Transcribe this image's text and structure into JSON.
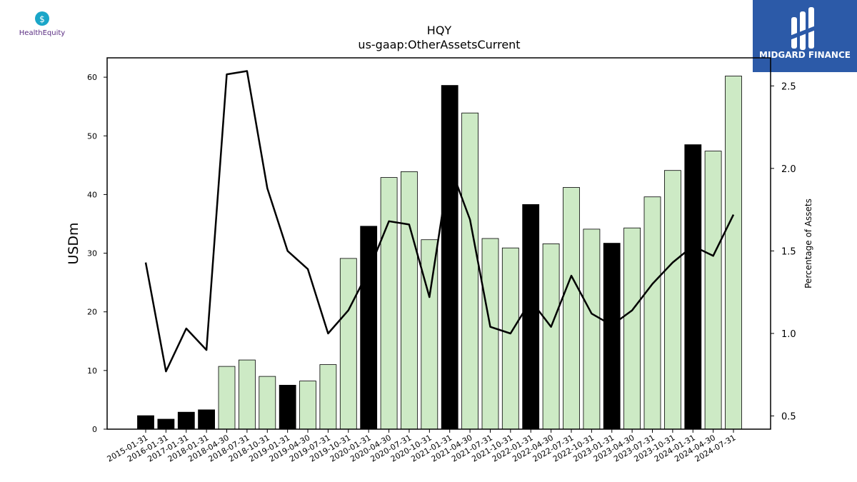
{
  "logos": {
    "left_text": "HealthEquity",
    "right_text": "MIDGARD FINANCE"
  },
  "colors": {
    "bar_black": "#000000",
    "bar_green": "#cdeac5",
    "line": "#000000",
    "logo_right_bg": "#2c5aa8",
    "logo_left_accent": "#1aa6c8",
    "logo_left_text": "#5a2d82"
  },
  "chart_data": {
    "type": "bar",
    "title": "HQY",
    "subtitle": "us-gaap:OtherAssetsCurrent",
    "ylabel": "USDm",
    "ylabel_right": "Percentage of Assets",
    "ylim": [
      0,
      63.3
    ],
    "ylim_right": [
      0.42,
      2.67
    ],
    "yticks": [
      0,
      10,
      20,
      30,
      40,
      50,
      60
    ],
    "yticks_right": [
      0.5,
      1.0,
      1.5,
      2.0,
      2.5
    ],
    "grid": false,
    "categories": [
      "2015-01-31",
      "2016-01-31",
      "2017-01-31",
      "2018-01-31",
      "2018-04-30",
      "2018-07-31",
      "2018-10-31",
      "2019-01-31",
      "2019-04-30",
      "2019-07-31",
      "2019-10-31",
      "2020-01-31",
      "2020-04-30",
      "2020-07-31",
      "2020-10-31",
      "2021-01-31",
      "2021-04-30",
      "2021-07-31",
      "2021-10-31",
      "2022-01-31",
      "2022-04-30",
      "2022-07-31",
      "2022-10-31",
      "2023-01-31",
      "2023-04-30",
      "2023-07-31",
      "2023-10-31",
      "2024-01-31",
      "2024-04-30",
      "2024-07-31"
    ],
    "series": [
      {
        "kind": "bar",
        "values": [
          2.3,
          1.7,
          2.9,
          3.3,
          10.7,
          11.8,
          9.0,
          7.5,
          8.2,
          11.0,
          29.1,
          34.6,
          42.9,
          43.9,
          32.3,
          58.6,
          53.9,
          32.5,
          30.9,
          38.3,
          31.6,
          41.2,
          34.1,
          31.7,
          34.3,
          39.6,
          44.1,
          48.5,
          47.4,
          60.2
        ],
        "annual": [
          true,
          true,
          true,
          true,
          false,
          false,
          false,
          true,
          false,
          false,
          false,
          true,
          false,
          false,
          false,
          true,
          false,
          false,
          false,
          true,
          false,
          false,
          false,
          true,
          false,
          false,
          false,
          true,
          false,
          false
        ]
      },
      {
        "kind": "line",
        "axis": "right",
        "values": [
          1.43,
          0.77,
          1.03,
          0.9,
          2.57,
          2.59,
          1.88,
          1.5,
          1.39,
          1.0,
          1.14,
          1.38,
          1.68,
          1.66,
          1.22,
          2.02,
          1.69,
          1.04,
          1.0,
          1.2,
          1.04,
          1.35,
          1.12,
          1.05,
          1.14,
          1.3,
          1.43,
          1.53,
          1.47,
          1.72
        ]
      }
    ]
  }
}
